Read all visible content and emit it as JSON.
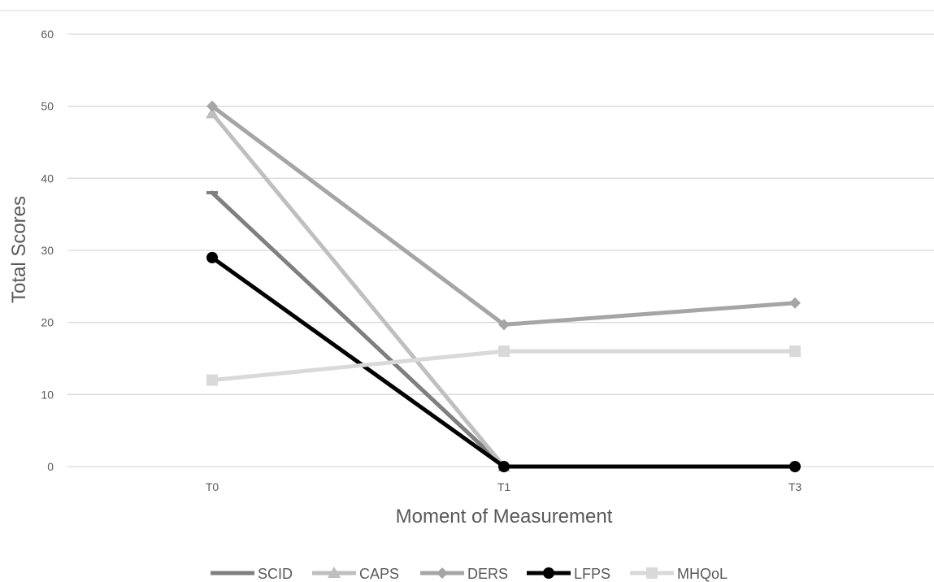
{
  "chart_data": {
    "type": "line",
    "title": "",
    "xlabel": "Moment of Measurement",
    "ylabel": "Total Scores",
    "categories": [
      "T0",
      "T1",
      "T3"
    ],
    "ylim": [
      0,
      60
    ],
    "yticks": [
      0,
      10,
      20,
      30,
      40,
      50,
      60
    ],
    "grid": true,
    "legend_position": "bottom",
    "series": [
      {
        "name": "SCID",
        "values": [
          38,
          0,
          null
        ],
        "color": "#7f7f7f",
        "marker": "dash"
      },
      {
        "name": "CAPS",
        "values": [
          49,
          0,
          null
        ],
        "color": "#bfbfbf",
        "marker": "triangle"
      },
      {
        "name": "DERS",
        "values": [
          50,
          19.7,
          22.7
        ],
        "color": "#a5a5a5",
        "marker": "diamond"
      },
      {
        "name": "LFPS",
        "values": [
          29,
          0,
          0
        ],
        "color": "#000000",
        "marker": "circle"
      },
      {
        "name": "MHQoL",
        "values": [
          12,
          16,
          16
        ],
        "color": "#d9d9d9",
        "marker": "square"
      }
    ]
  }
}
